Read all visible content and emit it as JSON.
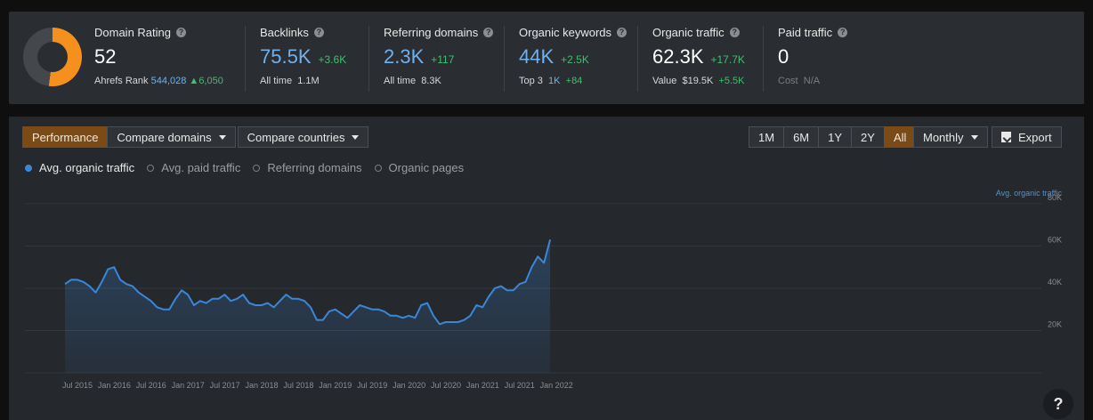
{
  "stats": {
    "domain_rating": {
      "title": "Domain Rating",
      "value": "52",
      "rank_label": "Ahrefs Rank",
      "rank_value": "544,028",
      "rank_delta": "6,050",
      "donut_fraction": 0.52,
      "donut_color": "#f5901e"
    },
    "backlinks": {
      "title": "Backlinks",
      "value": "75.5K",
      "delta": "+3.6K",
      "sub_label": "All time",
      "sub_value": "1.1M"
    },
    "referring_domains": {
      "title": "Referring domains",
      "value": "2.3K",
      "delta": "+117",
      "sub_label": "All time",
      "sub_value": "8.3K"
    },
    "organic_keywords": {
      "title": "Organic keywords",
      "value": "44K",
      "delta": "+2.5K",
      "sub_label": "Top 3",
      "sub_value": "1K",
      "sub_delta": "+84"
    },
    "organic_traffic": {
      "title": "Organic traffic",
      "value": "62.3K",
      "delta": "+17.7K",
      "sub_label": "Value",
      "sub_value": "$19.5K",
      "sub_delta": "+5.5K"
    },
    "paid_traffic": {
      "title": "Paid traffic",
      "value": "0",
      "sub_label": "Cost",
      "sub_value": "N/A"
    }
  },
  "toolbar": {
    "tabs": [
      "Performance",
      "Compare domains",
      "Compare countries"
    ],
    "active_tab": "Performance",
    "ranges": [
      "1M",
      "6M",
      "1Y",
      "2Y",
      "All"
    ],
    "active_range": "All",
    "interval": "Monthly",
    "export": "Export"
  },
  "legend": [
    {
      "label": "Avg. organic traffic",
      "on": true
    },
    {
      "label": "Avg. paid traffic",
      "on": false
    },
    {
      "label": "Referring domains",
      "on": false
    },
    {
      "label": "Organic pages",
      "on": false
    }
  ],
  "help_label": "?",
  "chart_data": {
    "type": "area",
    "title": "",
    "series_label": "Avg. organic traffic",
    "xlabel": "",
    "ylabel": "",
    "x_ticks": [
      "Jul 2015",
      "Jan 2016",
      "Jul 2016",
      "Jan 2017",
      "Jul 2017",
      "Jan 2018",
      "Jul 2018",
      "Jan 2019",
      "Jul 2019",
      "Jan 2020",
      "Jul 2020",
      "Jan 2021",
      "Jul 2021",
      "Jan 2022"
    ],
    "y_ticks": [
      {
        "value": 20000,
        "label": "20K"
      },
      {
        "value": 40000,
        "label": "40K"
      },
      {
        "value": 60000,
        "label": "60K"
      },
      {
        "value": 80000,
        "label": "80K"
      }
    ],
    "ylim": [
      0,
      85000
    ],
    "grid": true,
    "color": "#3a86d8",
    "series": [
      {
        "name": "Avg. organic traffic",
        "start": "Jul 2015",
        "interval": "monthly",
        "values": [
          42000,
          44000,
          44000,
          43000,
          41000,
          38000,
          43000,
          49000,
          50000,
          44000,
          42000,
          41000,
          38000,
          36000,
          34000,
          31000,
          30000,
          30000,
          35000,
          39000,
          37000,
          32000,
          34000,
          33000,
          35000,
          35000,
          37000,
          34000,
          35000,
          37000,
          33000,
          32000,
          32000,
          33000,
          31000,
          34000,
          37000,
          35000,
          35000,
          34000,
          31000,
          25000,
          25000,
          29000,
          30000,
          28000,
          26000,
          29000,
          32000,
          31000,
          30000,
          30000,
          29000,
          27000,
          27000,
          26000,
          27000,
          26000,
          32000,
          33000,
          27000,
          23000,
          24000,
          24000,
          24000,
          25000,
          27000,
          32000,
          31000,
          36000,
          40000,
          41000,
          39000,
          39000,
          42000,
          43000,
          50000,
          55000,
          52000,
          63000
        ]
      }
    ]
  }
}
